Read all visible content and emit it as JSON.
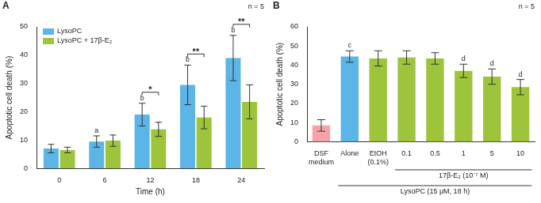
{
  "chart_data": [
    {
      "type": "bar",
      "title": "A",
      "x_label": "Time (h)",
      "y_label": "Apoptotic cell death (%)",
      "annotations": [
        "n = 5"
      ],
      "categories": [
        "0",
        "6",
        "12",
        "18",
        "24"
      ],
      "series": [
        {
          "name": "LysoPC",
          "color": "#5bb5e6",
          "values": [
            7,
            9.5,
            19,
            29.5,
            39
          ],
          "errors": [
            1.5,
            2,
            4,
            7,
            8
          ],
          "letters": [
            null,
            "a",
            "b",
            "b",
            "b"
          ]
        },
        {
          "name": "LysoPC + 17β-E₂",
          "color": "#9dc43b",
          "values": [
            6.5,
            9.8,
            13.8,
            18,
            23.5
          ],
          "errors": [
            1,
            2,
            2.5,
            4,
            6
          ]
        }
      ],
      "comparisons": [
        {
          "category": "12",
          "label": "*"
        },
        {
          "category": "18",
          "label": "**"
        },
        {
          "category": "24",
          "label": "**"
        }
      ],
      "ylim": [
        0,
        50
      ],
      "yticks": [
        0,
        10,
        20,
        30,
        40,
        50
      ],
      "grid": false,
      "legend": "upper left"
    },
    {
      "type": "bar",
      "title": "B",
      "y_label": "Apoptotic cell death (%)",
      "annotations": [
        "n = 5"
      ],
      "categories": [
        "DSF medium",
        "Alone",
        "EtOH (0.1%)",
        "0.1",
        "0.5",
        "1",
        "5",
        "10"
      ],
      "values": [
        8.5,
        44.5,
        43.5,
        44,
        43.5,
        37,
        34,
        28.5
      ],
      "errors": [
        3,
        3,
        4,
        3.5,
        3,
        3.5,
        4,
        4
      ],
      "letters": [
        null,
        "c",
        null,
        null,
        null,
        "d",
        "d",
        "d"
      ],
      "colors": [
        "#f4a3a8",
        "#5bb5e6",
        "#9dc43b",
        "#9dc43b",
        "#9dc43b",
        "#9dc43b",
        "#9dc43b",
        "#9dc43b"
      ],
      "groups": [
        {
          "label": "17β-E₂ (10⁻⁷ M)",
          "from": "0.1",
          "to": "10"
        },
        {
          "label": "LysoPC (15 μM, 18 h)",
          "from": "Alone",
          "to": "10"
        }
      ],
      "ylim": [
        0,
        60
      ],
      "yticks": [
        0,
        10,
        20,
        30,
        40,
        50,
        60
      ],
      "grid": false
    }
  ]
}
